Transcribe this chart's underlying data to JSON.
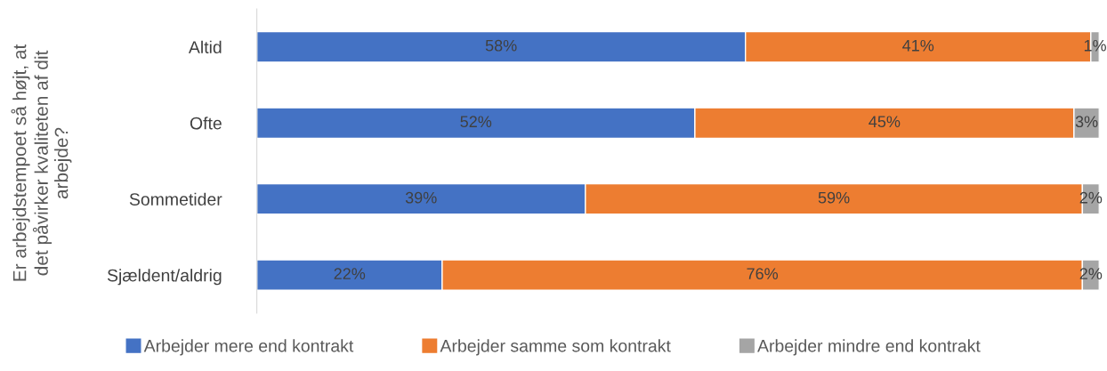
{
  "chart_data": {
    "type": "bar",
    "orientation": "horizontal",
    "stacked": true,
    "ylabel": "Er arbejdstempoet så højt, at det påvirker kvaliteten af dit arbejde?",
    "categories": [
      "Altid",
      "Ofte",
      "Sommetider",
      "Sjældent/aldrig"
    ],
    "series": [
      {
        "name": "Arbejder mere end kontrakt",
        "color": "#4472c4",
        "values": [
          58,
          52,
          39,
          22
        ],
        "value_labels": [
          "58%",
          "52%",
          "39%",
          "22%"
        ]
      },
      {
        "name": "Arbejder samme som kontrakt",
        "color": "#ed7d31",
        "values": [
          41,
          45,
          59,
          76
        ],
        "value_labels": [
          "41%",
          "45%",
          "59%",
          "76%"
        ]
      },
      {
        "name": "Arbejder mindre end kontrakt",
        "color": "#a5a5a5",
        "values": [
          1,
          3,
          2,
          2
        ],
        "value_labels": [
          "1%",
          "3%",
          "2%",
          "2%"
        ]
      }
    ],
    "xlim": [
      0,
      100
    ],
    "tick_labels": "y",
    "grid": false,
    "legend": "bottom"
  }
}
